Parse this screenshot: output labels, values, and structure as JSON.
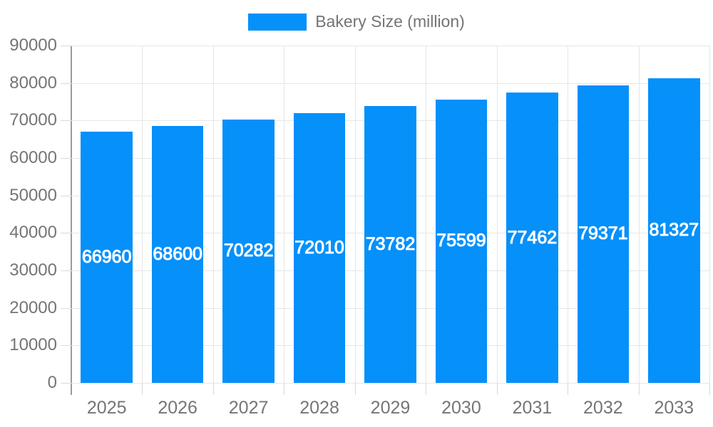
{
  "legend": {
    "label": "Bakery Size (million)"
  },
  "chart_data": {
    "type": "bar",
    "title": "",
    "categories": [
      "2025",
      "2026",
      "2027",
      "2028",
      "2029",
      "2030",
      "2031",
      "2032",
      "2033"
    ],
    "series": [
      {
        "name": "Bakery Size (million)",
        "values": [
          66960,
          68600,
          70282,
          72010,
          73782,
          75599,
          77462,
          79371,
          81327
        ]
      }
    ],
    "values": [
      66960,
      68600,
      70282,
      72010,
      73782,
      75599,
      77462,
      79371,
      81327
    ],
    "value_labels": [
      "66960",
      "68600",
      "70282",
      "72010",
      "73782",
      "75599",
      "77462",
      "79371",
      "81327"
    ],
    "xlabel": "",
    "ylabel": "",
    "ylim": [
      0,
      90000
    ],
    "ytick_step": 10000,
    "ytick_labels": [
      "0",
      "10000",
      "20000",
      "30000",
      "40000",
      "50000",
      "60000",
      "70000",
      "80000",
      "90000"
    ],
    "grid": true,
    "legend_position": "top",
    "colors": {
      "bar": "#0590FA",
      "value_label": "#FFFFFF",
      "axis_text": "#757575",
      "grid_line": "#E6E6E6",
      "tick_line": "#D9D9D9",
      "axis_line": "#9B9B9B",
      "background": "#FFFFFF"
    }
  }
}
